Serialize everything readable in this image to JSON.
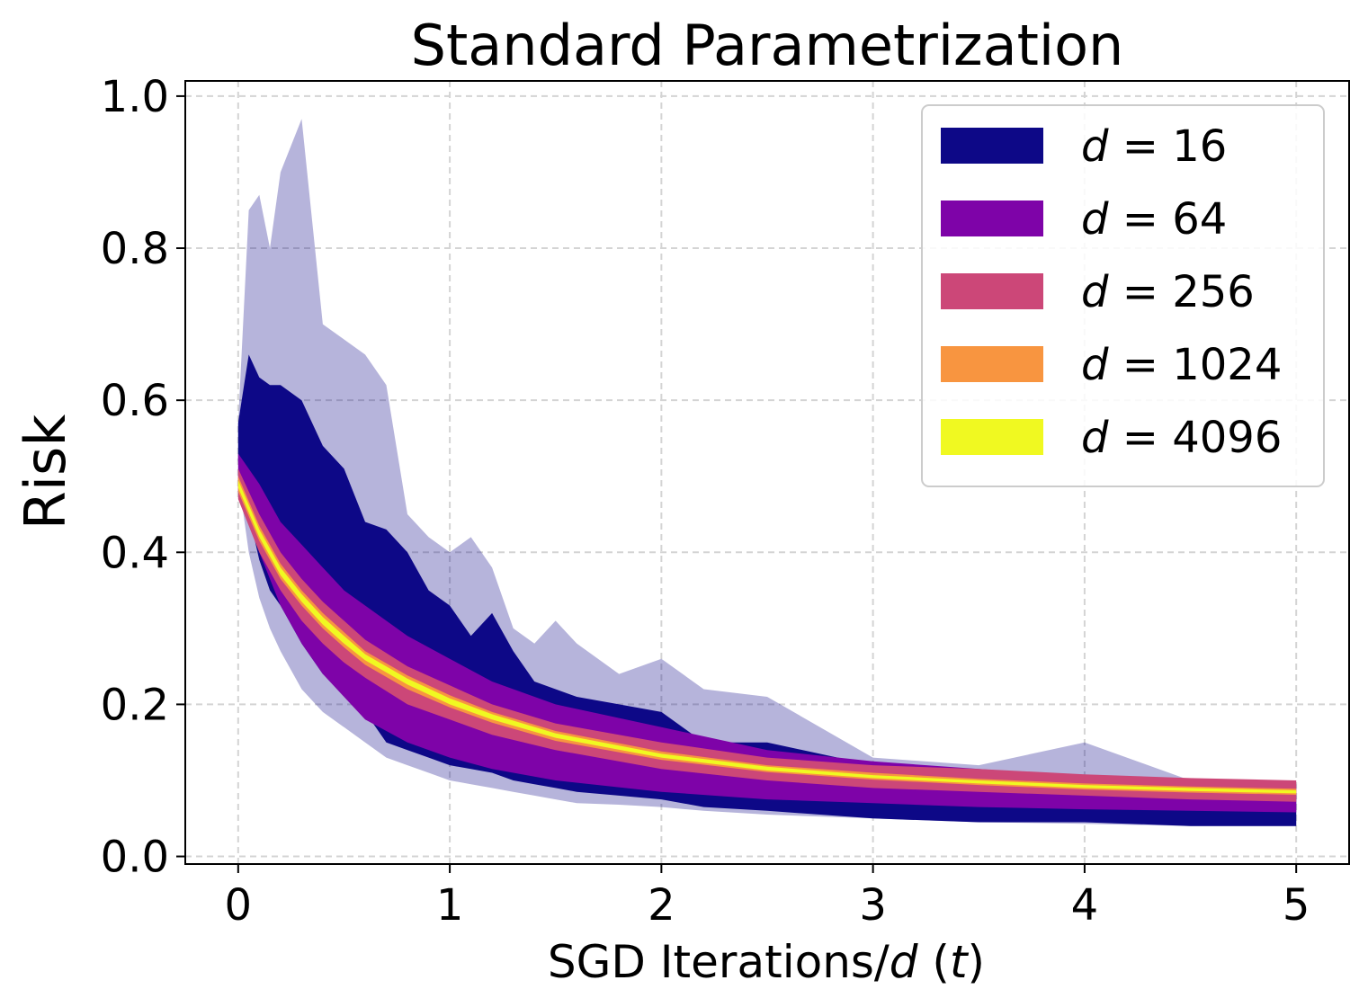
{
  "chart_data": {
    "type": "area",
    "title": "Standard Parametrization",
    "xlabel": "SGD Iterations/d (t)",
    "xlabel_parts": {
      "prefix": "SGD Iterations/",
      "d": "d",
      "open": " (",
      "t": "t",
      "close": ")"
    },
    "ylabel": "Risk",
    "xlim": [
      -0.25,
      5.25
    ],
    "ylim": [
      -0.01,
      1.02
    ],
    "xticks": [
      0,
      1,
      2,
      3,
      4,
      5
    ],
    "xtick_labels": [
      "0",
      "1",
      "2",
      "3",
      "4",
      "5"
    ],
    "yticks": [
      0.0,
      0.2,
      0.4,
      0.6,
      0.8,
      1.0
    ],
    "ytick_labels": [
      "0.0",
      "0.2",
      "0.4",
      "0.6",
      "0.8",
      "1.0"
    ],
    "grid": true,
    "legend_position": "top-right",
    "legend_var": "d",
    "legend_eq": "=",
    "series": [
      {
        "name": "d = 16",
        "value": "16",
        "color": "#0d0887",
        "x": [
          0,
          0.05,
          0.1,
          0.15,
          0.2,
          0.3,
          0.4,
          0.5,
          0.6,
          0.7,
          0.8,
          0.9,
          1.0,
          1.1,
          1.2,
          1.3,
          1.4,
          1.5,
          1.6,
          1.8,
          2.0,
          2.2,
          2.5,
          3.0,
          3.5,
          4.0,
          4.5,
          5.0
        ],
        "upper": [
          0.57,
          0.66,
          0.63,
          0.62,
          0.62,
          0.6,
          0.54,
          0.51,
          0.44,
          0.43,
          0.4,
          0.35,
          0.33,
          0.29,
          0.32,
          0.27,
          0.23,
          0.22,
          0.21,
          0.2,
          0.19,
          0.15,
          0.15,
          0.12,
          0.11,
          0.1,
          0.09,
          0.08
        ],
        "lower": [
          0.52,
          0.45,
          0.39,
          0.35,
          0.33,
          0.28,
          0.24,
          0.22,
          0.19,
          0.15,
          0.14,
          0.13,
          0.12,
          0.115,
          0.11,
          0.1,
          0.095,
          0.09,
          0.085,
          0.08,
          0.075,
          0.065,
          0.06,
          0.05,
          0.045,
          0.045,
          0.04,
          0.04
        ],
        "outer_upper": [
          0.57,
          0.85,
          0.87,
          0.8,
          0.9,
          0.97,
          0.7,
          0.68,
          0.66,
          0.62,
          0.45,
          0.42,
          0.4,
          0.42,
          0.38,
          0.3,
          0.28,
          0.31,
          0.28,
          0.24,
          0.26,
          0.22,
          0.21,
          0.13,
          0.12,
          0.15,
          0.1,
          0.09
        ],
        "outer_lower": [
          0.5,
          0.4,
          0.34,
          0.3,
          0.27,
          0.22,
          0.19,
          0.17,
          0.15,
          0.13,
          0.12,
          0.11,
          0.1,
          0.095,
          0.09,
          0.085,
          0.08,
          0.075,
          0.07,
          0.068,
          0.065,
          0.06,
          0.055,
          0.05,
          0.045,
          0.043,
          0.04,
          0.04
        ]
      },
      {
        "name": "d = 64",
        "value": "64",
        "color": "#7e03a8",
        "x": [
          0,
          0.1,
          0.2,
          0.3,
          0.4,
          0.5,
          0.6,
          0.8,
          1.0,
          1.2,
          1.5,
          2.0,
          2.5,
          3.0,
          3.5,
          4.0,
          4.5,
          5.0
        ],
        "upper": [
          0.53,
          0.49,
          0.44,
          0.41,
          0.38,
          0.35,
          0.33,
          0.29,
          0.26,
          0.23,
          0.2,
          0.17,
          0.14,
          0.125,
          0.115,
          0.105,
          0.1,
          0.095
        ],
        "lower": [
          0.48,
          0.4,
          0.33,
          0.28,
          0.24,
          0.21,
          0.18,
          0.15,
          0.13,
          0.115,
          0.1,
          0.085,
          0.075,
          0.07,
          0.065,
          0.062,
          0.06,
          0.058
        ]
      },
      {
        "name": "d = 256",
        "value": "256",
        "color": "#cc4778",
        "x": [
          0,
          0.1,
          0.2,
          0.3,
          0.4,
          0.5,
          0.6,
          0.8,
          1.0,
          1.2,
          1.5,
          2.0,
          2.5,
          3.0,
          3.5,
          4.0,
          4.5,
          5.0
        ],
        "upper": [
          0.51,
          0.45,
          0.4,
          0.365,
          0.335,
          0.31,
          0.285,
          0.25,
          0.225,
          0.2,
          0.175,
          0.15,
          0.13,
          0.12,
          0.115,
          0.108,
          0.103,
          0.1
        ],
        "lower": [
          0.47,
          0.4,
          0.35,
          0.31,
          0.28,
          0.255,
          0.235,
          0.2,
          0.18,
          0.16,
          0.14,
          0.115,
          0.1,
          0.09,
          0.085,
          0.08,
          0.075,
          0.072
        ]
      },
      {
        "name": "d = 1024",
        "value": "1024",
        "color": "#f89540",
        "x": [
          0,
          0.1,
          0.2,
          0.3,
          0.4,
          0.5,
          0.6,
          0.8,
          1.0,
          1.2,
          1.5,
          2.0,
          2.5,
          3.0,
          3.5,
          4.0,
          4.5,
          5.0
        ],
        "upper": [
          0.5,
          0.435,
          0.385,
          0.35,
          0.32,
          0.295,
          0.27,
          0.238,
          0.212,
          0.19,
          0.165,
          0.138,
          0.12,
          0.11,
          0.102,
          0.096,
          0.092,
          0.089
        ],
        "lower": [
          0.48,
          0.415,
          0.365,
          0.33,
          0.3,
          0.275,
          0.252,
          0.22,
          0.196,
          0.176,
          0.152,
          0.127,
          0.111,
          0.101,
          0.094,
          0.088,
          0.084,
          0.081
        ]
      },
      {
        "name": "d = 4096",
        "value": "4096",
        "color": "#f0f921",
        "x": [
          0,
          0.1,
          0.2,
          0.3,
          0.4,
          0.5,
          0.6,
          0.8,
          1.0,
          1.2,
          1.5,
          2.0,
          2.5,
          3.0,
          3.5,
          4.0,
          4.5,
          5.0
        ],
        "upper": [
          0.495,
          0.43,
          0.38,
          0.345,
          0.315,
          0.29,
          0.266,
          0.234,
          0.208,
          0.187,
          0.162,
          0.135,
          0.118,
          0.107,
          0.1,
          0.094,
          0.09,
          0.087
        ],
        "lower": [
          0.485,
          0.42,
          0.37,
          0.335,
          0.305,
          0.28,
          0.258,
          0.226,
          0.2,
          0.18,
          0.156,
          0.13,
          0.113,
          0.103,
          0.096,
          0.09,
          0.086,
          0.083
        ]
      }
    ]
  }
}
